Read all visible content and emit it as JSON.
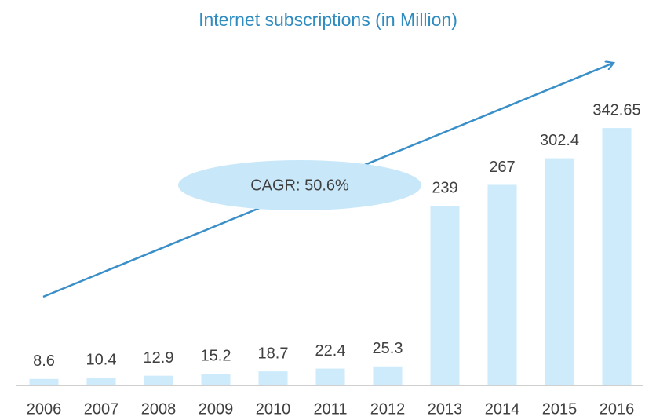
{
  "chart_data": {
    "type": "bar",
    "title": "Internet subscriptions (in Million)",
    "annotation": "CAGR: 50.6%",
    "categories": [
      "2006",
      "2007",
      "2008",
      "2009",
      "2010",
      "2011",
      "2012",
      "2013",
      "2014",
      "2015",
      "2016"
    ],
    "values": [
      8.6,
      10.4,
      12.9,
      15.2,
      18.7,
      22.4,
      25.3,
      239,
      267,
      302.4,
      342.65
    ],
    "color": "#cdebfb"
  }
}
